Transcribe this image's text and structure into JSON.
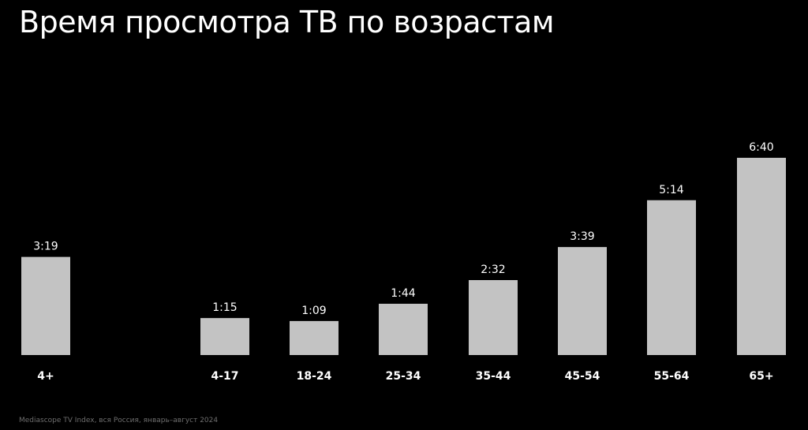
{
  "page": {
    "title": "Время просмотра ТВ по возрастам",
    "source": "Mediascope TV Index, вся Россия, январь–август 2024"
  },
  "colors": {
    "background": "#000000",
    "bar": "#c3c3c3",
    "text": "#ffffff",
    "source_text": "#6e6e6e"
  },
  "chart_data": {
    "type": "bar",
    "title": "Время просмотра ТВ по возрастам",
    "xlabel": "",
    "ylabel": "",
    "categories": [
      "4+",
      "4-17",
      "18-24",
      "25-34",
      "35-44",
      "45-54",
      "55-64",
      "65+"
    ],
    "values_minutes": [
      199,
      75,
      69,
      104,
      152,
      219,
      314,
      400
    ],
    "labels": [
      "3:19",
      "1:15",
      "1:09",
      "1:44",
      "2:32",
      "3:39",
      "5:14",
      "6:40"
    ],
    "value_format": "h:mm",
    "ylim": [
      0,
      400
    ],
    "grid": false,
    "legend": "none"
  }
}
